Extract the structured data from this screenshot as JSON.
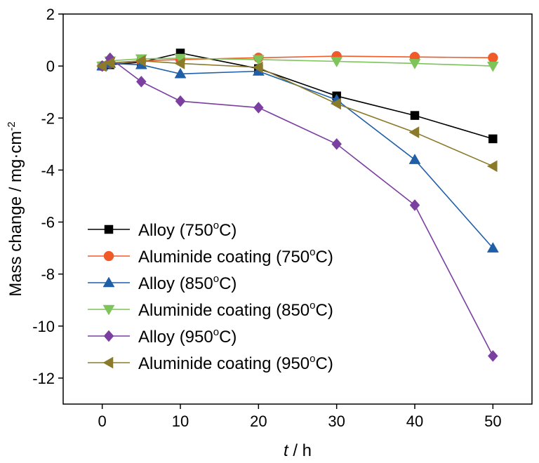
{
  "chart_data": {
    "type": "line",
    "xlabel_var": "t",
    "xlabel_unit": " / h",
    "ylabel_main": "Mass change / mg·cm",
    "ylabel_sup": "-2",
    "xlim": [
      -5,
      55
    ],
    "ylim": [
      -13,
      2
    ],
    "xticks": [
      0,
      10,
      20,
      30,
      40,
      50
    ],
    "yticks": [
      2,
      0,
      -2,
      -4,
      -6,
      -8,
      -10,
      -12
    ],
    "grid": false,
    "legend_position": "bottom-left",
    "series": [
      {
        "name": "Alloy (750",
        "name_sup": "o",
        "name_tail": "C)",
        "color": "#000000",
        "marker": "square",
        "x": [
          0,
          1,
          5,
          10,
          20,
          30,
          40,
          50
        ],
        "y": [
          0.0,
          0.05,
          0.15,
          0.5,
          -0.1,
          -1.15,
          -1.9,
          -2.8
        ]
      },
      {
        "name": "Aluminide coating (750",
        "name_sup": "o",
        "name_tail": "C)",
        "color": "#f05a28",
        "marker": "circle",
        "x": [
          0,
          1,
          5,
          10,
          20,
          30,
          40,
          50
        ],
        "y": [
          0.0,
          0.1,
          0.2,
          0.25,
          0.32,
          0.38,
          0.35,
          0.32
        ]
      },
      {
        "name": "Alloy (850",
        "name_sup": "o",
        "name_tail": "C)",
        "color": "#1f5fa8",
        "marker": "triangle-up",
        "x": [
          0,
          1,
          5,
          10,
          20,
          30,
          40,
          50
        ],
        "y": [
          0.0,
          0.1,
          0.05,
          -0.3,
          -0.2,
          -1.3,
          -3.6,
          -7.0
        ]
      },
      {
        "name": "Aluminide coating (850",
        "name_sup": "o",
        "name_tail": "C)",
        "color": "#7dc45a",
        "marker": "triangle-down",
        "x": [
          0,
          1,
          5,
          10,
          20,
          30,
          40,
          50
        ],
        "y": [
          0.0,
          0.2,
          0.28,
          0.3,
          0.25,
          0.18,
          0.1,
          0.0
        ]
      },
      {
        "name": "Alloy (950",
        "name_sup": "o",
        "name_tail": "C)",
        "color": "#7b3fa0",
        "marker": "diamond",
        "x": [
          0,
          1,
          5,
          10,
          20,
          30,
          40,
          50
        ],
        "y": [
          0.0,
          0.3,
          -0.6,
          -1.35,
          -1.6,
          -3.0,
          -5.35,
          -11.15
        ]
      },
      {
        "name": "Aluminide coating (950",
        "name_sup": "o",
        "name_tail": "C)",
        "color": "#8a7a2a",
        "marker": "triangle-left",
        "x": [
          0,
          1,
          5,
          10,
          20,
          30,
          40,
          50
        ],
        "y": [
          0.0,
          0.12,
          0.2,
          0.1,
          -0.05,
          -1.45,
          -2.55,
          -3.85
        ]
      }
    ]
  }
}
